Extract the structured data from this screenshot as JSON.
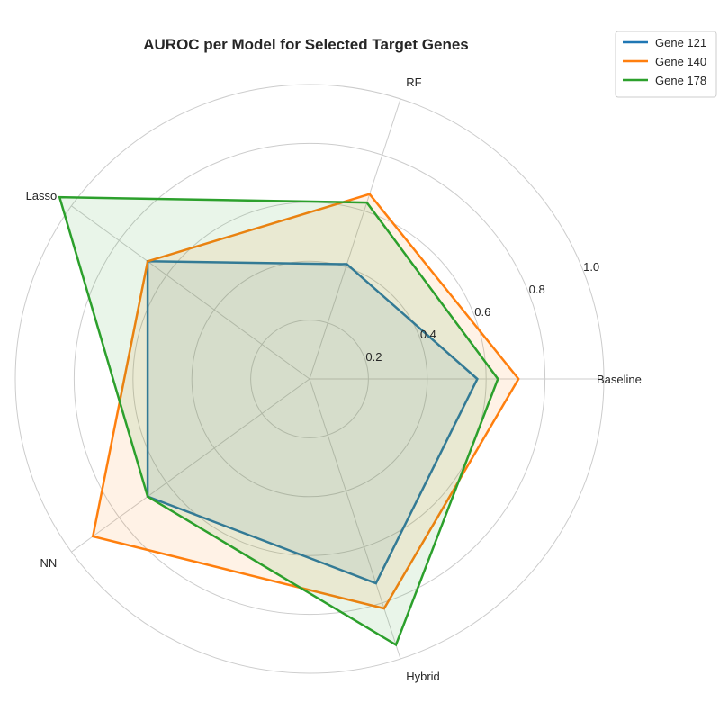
{
  "chart_data": {
    "type": "radar",
    "title": "AUROC per Model for Selected Target Genes",
    "categories": [
      "Baseline",
      "RF",
      "Lasso",
      "NN",
      "Hybrid"
    ],
    "rlim": [
      0,
      1.0
    ],
    "r_ticks": [
      "0.2",
      "0.4",
      "0.6",
      "0.8",
      "1.0"
    ],
    "grid": true,
    "legend_position": "top-right",
    "series": [
      {
        "name": "Gene 121",
        "color": "#1f77b4",
        "values": [
          0.57,
          0.41,
          0.68,
          0.68,
          0.73
        ]
      },
      {
        "name": "Gene 140",
        "color": "#ff7f0e",
        "values": [
          0.71,
          0.66,
          0.68,
          0.91,
          0.82
        ]
      },
      {
        "name": "Gene 178",
        "color": "#2ca02c",
        "values": [
          0.64,
          0.63,
          1.05,
          0.68,
          0.95
        ]
      }
    ]
  }
}
